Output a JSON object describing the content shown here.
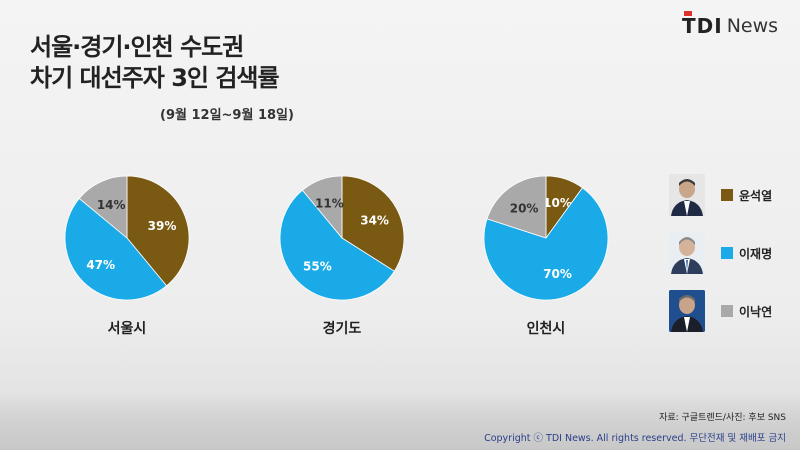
{
  "header": {
    "title_line1": "서울·경기·인천 수도권",
    "title_line2": "차기 대선주자 3인 검색률",
    "subtitle": "(9월 12일~9월 18일)",
    "logo_tdi": "TDI",
    "logo_news": "News"
  },
  "colors": {
    "yoon": "#7a5a12",
    "lee_jm": "#1aaae8",
    "lee_ny": "#a9a9a9"
  },
  "chart_data": [
    {
      "type": "pie",
      "title": "서울시",
      "slices": [
        {
          "name": "윤석열",
          "value": 39,
          "label": "39%"
        },
        {
          "name": "이재명",
          "value": 47,
          "label": "47%"
        },
        {
          "name": "이낙연",
          "value": 14,
          "label": "14%"
        }
      ]
    },
    {
      "type": "pie",
      "title": "경기도",
      "slices": [
        {
          "name": "윤석열",
          "value": 34,
          "label": "34%"
        },
        {
          "name": "이재명",
          "value": 55,
          "label": "55%"
        },
        {
          "name": "이낙연",
          "value": 11,
          "label": "11%"
        }
      ]
    },
    {
      "type": "pie",
      "title": "인천시",
      "slices": [
        {
          "name": "윤석열",
          "value": 10,
          "label": "10%"
        },
        {
          "name": "이재명",
          "value": 70,
          "label": "70%"
        },
        {
          "name": "이낙연",
          "value": 20,
          "label": "20%"
        }
      ]
    }
  ],
  "legend": [
    {
      "name": "윤석열",
      "color": "#7a5a12",
      "icon": "candidate-photo"
    },
    {
      "name": "이재명",
      "color": "#1aaae8",
      "icon": "candidate-photo"
    },
    {
      "name": "이낙연",
      "color": "#a9a9a9",
      "icon": "candidate-photo"
    }
  ],
  "footer": {
    "source": "자료: 구글트렌드/사진: 후보 SNS",
    "copyright": "Copyright ⓒ TDI News. All rights reserved. 무단전재 및 재배포 금지"
  }
}
